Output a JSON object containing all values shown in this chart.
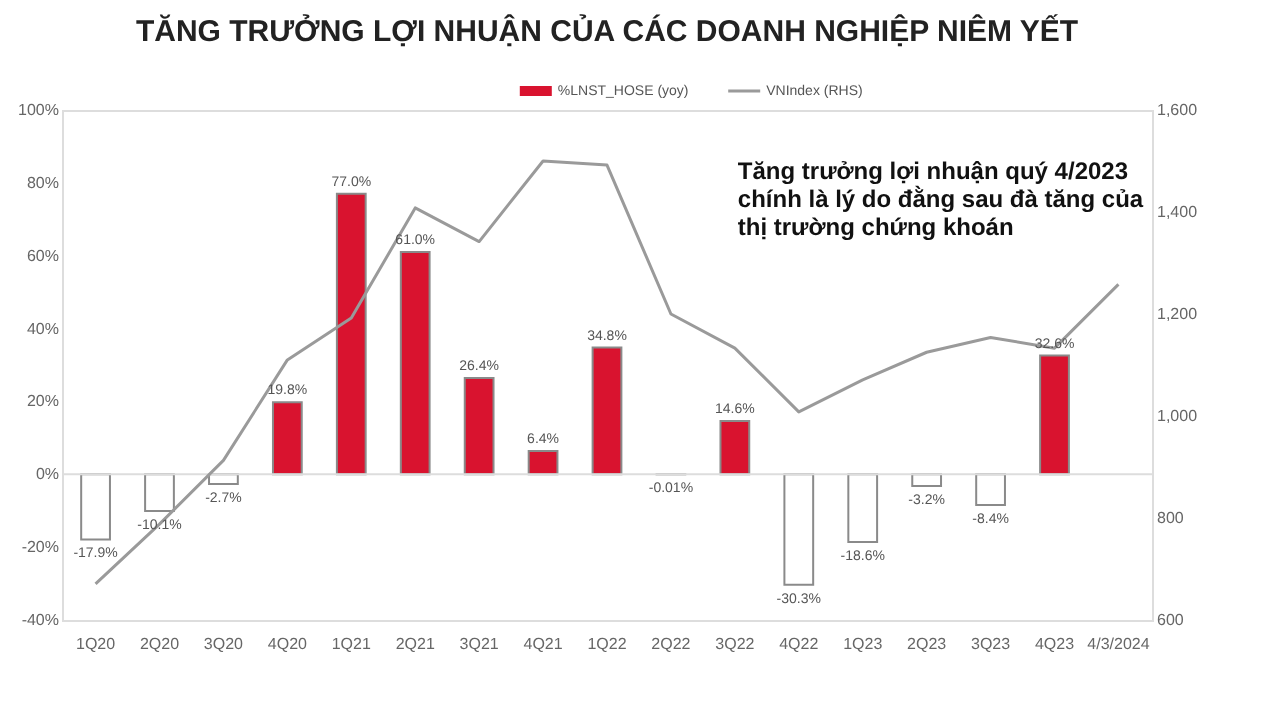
{
  "chart_data": {
    "type": "bar",
    "title": "TĂNG TRƯỞNG LỢI NHUẬN CỦA CÁC DOANH NGHIỆP NIÊM YẾT",
    "categories": [
      "1Q20",
      "2Q20",
      "3Q20",
      "4Q20",
      "1Q21",
      "2Q21",
      "3Q21",
      "4Q21",
      "1Q22",
      "2Q22",
      "3Q22",
      "4Q22",
      "1Q23",
      "2Q23",
      "3Q23",
      "4Q23",
      "4/3/2024"
    ],
    "series": [
      {
        "name": "%LNST_HOSE (yoy)",
        "colors": [
          "#ffffff",
          "#ffffff",
          "#ffffff",
          "#d9132f",
          "#d9132f",
          "#d9132f",
          "#d9132f",
          "#d9132f",
          "#d9132f",
          "#ffffff",
          "#d9132f",
          "#ffffff",
          "#ffffff",
          "#ffffff",
          "#ffffff",
          "#d9132f",
          "#ffffff"
        ],
        "values": [
          -17.9,
          -10.1,
          -2.7,
          19.8,
          77.0,
          61.0,
          26.4,
          6.4,
          34.8,
          -0.01,
          14.6,
          -30.3,
          -18.6,
          -3.2,
          -8.4,
          32.6,
          null
        ],
        "value_labels": [
          "-17.9%",
          "-10.1%",
          "-2.7%",
          "19.8%",
          "77.0%",
          "61.0%",
          "26.4%",
          "6.4%",
          "34.8%",
          "-0.01%",
          "14.6%",
          "-30.3%",
          "-18.6%",
          "-3.2%",
          "-8.4%",
          "32.6%",
          null
        ]
      },
      {
        "name": "VNIndex (RHS)",
        "type": "line",
        "axis": "y2",
        "color": "#9a9a9a",
        "values": [
          671,
          788,
          913,
          1110,
          1192,
          1408,
          1342,
          1500,
          1492,
          1200,
          1133,
          1008,
          1071,
          1125,
          1154,
          1133,
          1258
        ]
      }
    ],
    "ylim": [
      -40,
      100
    ],
    "yticks": [
      {
        "value": -40,
        "label": "-40%"
      },
      {
        "value": -20,
        "label": "-20%"
      },
      {
        "value": 0,
        "label": "0%"
      },
      {
        "value": 20,
        "label": "20%"
      },
      {
        "value": 40,
        "label": "40%"
      },
      {
        "value": 60,
        "label": "60%"
      },
      {
        "value": 80,
        "label": "80%"
      },
      {
        "value": 100,
        "label": "100%"
      }
    ],
    "y2lim": [
      600,
      1600
    ],
    "y2ticks": [
      {
        "value": 600,
        "label": "600"
      },
      {
        "value": 800,
        "label": "800"
      },
      {
        "value": 1000,
        "label": "1,000"
      },
      {
        "value": 1200,
        "label": "1,200"
      },
      {
        "value": 1400,
        "label": "1,400"
      },
      {
        "value": 1600,
        "label": "1,600"
      }
    ],
    "ref_lines": [
      {
        "axis": "y",
        "value": 0,
        "color": "#dddddd"
      }
    ],
    "annotations": [
      "Tăng trưởng lợi nhuận quý 4/2023\nchính là lý do đằng sau đà tăng của\nthị trường chứng khoán"
    ],
    "legend": "top",
    "grid": false
  }
}
